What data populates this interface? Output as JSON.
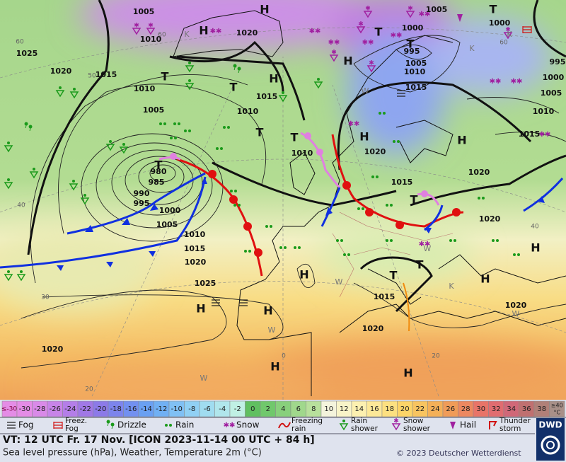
{
  "map": {
    "pressure_labels": [
      1005,
      1010,
      1020,
      1025,
      1020,
      1015,
      1010,
      1005,
      1015,
      1010,
      1000,
      995,
      1005,
      1010,
      1015,
      1005,
      1000,
      995,
      1000,
      1005,
      1010,
      1015,
      1020,
      1020,
      1010,
      1015,
      1020,
      980,
      985,
      990,
      995,
      1000,
      1005,
      1010,
      1015,
      1020,
      1025,
      1015,
      1020,
      1020,
      1020
    ],
    "pressure_centers": [
      "H",
      "H",
      "H",
      "T",
      "T",
      "T",
      "T",
      "H",
      "T",
      "T",
      "T",
      "H",
      "H",
      "T",
      "T",
      "H",
      "H",
      "H",
      "T",
      "T",
      "H",
      "H",
      "H",
      "H"
    ],
    "grid_labels": [
      60,
      50,
      40,
      30,
      20,
      0,
      20,
      40,
      60,
      60
    ],
    "air_mass_labels": [
      "K",
      "W",
      "K",
      "W",
      "W",
      "W",
      "W",
      "K",
      "W",
      "K"
    ]
  },
  "legend": {
    "temperature_scale": {
      "below_label": "≤-30",
      "above_label": "≥40",
      "unit": "°C",
      "items": [
        {
          "value": -30,
          "color": "#e48ce6"
        },
        {
          "value": -28,
          "color": "#d98ae8"
        },
        {
          "value": -26,
          "color": "#c784e8"
        },
        {
          "value": -24,
          "color": "#b47ee8"
        },
        {
          "value": -22,
          "color": "#a078e6"
        },
        {
          "value": -20,
          "color": "#8c7ae8"
        },
        {
          "value": -18,
          "color": "#7c84ec"
        },
        {
          "value": -16,
          "color": "#7290f0"
        },
        {
          "value": -14,
          "color": "#6aa0f2"
        },
        {
          "value": -12,
          "color": "#70b0f4"
        },
        {
          "value": -10,
          "color": "#80c0f4"
        },
        {
          "value": -8,
          "color": "#90d0f4"
        },
        {
          "value": -6,
          "color": "#a0dcf0"
        },
        {
          "value": -4,
          "color": "#b0e6ec"
        },
        {
          "value": -2,
          "color": "#c0f0e4"
        },
        {
          "value": 0,
          "color": "#60c060"
        },
        {
          "value": 2,
          "color": "#70c86c"
        },
        {
          "value": 4,
          "color": "#88d07c"
        },
        {
          "value": 6,
          "color": "#a0d88c"
        },
        {
          "value": 8,
          "color": "#b8e09c"
        },
        {
          "value": 10,
          "color": "#f4f4dc"
        },
        {
          "value": 12,
          "color": "#f8f4c8"
        },
        {
          "value": 14,
          "color": "#fcf0b0"
        },
        {
          "value": 16,
          "color": "#fce898"
        },
        {
          "value": 18,
          "color": "#fce080"
        },
        {
          "value": 20,
          "color": "#fcd468"
        },
        {
          "value": 22,
          "color": "#f8c460"
        },
        {
          "value": 24,
          "color": "#f4b058"
        },
        {
          "value": 26,
          "color": "#f09c58"
        },
        {
          "value": 28,
          "color": "#ec8860"
        },
        {
          "value": 30,
          "color": "#e87468"
        },
        {
          "value": 32,
          "color": "#e06c70"
        },
        {
          "value": 34,
          "color": "#d06878"
        },
        {
          "value": 36,
          "color": "#c07070"
        },
        {
          "value": 38,
          "color": "#b08078"
        }
      ]
    },
    "symbols": [
      {
        "type": "fog",
        "lines": [
          "Fog"
        ]
      },
      {
        "type": "freezfog",
        "lines": [
          "Freez.",
          "Fog"
        ]
      },
      {
        "type": "drizzle",
        "lines": [
          "Drizzle"
        ]
      },
      {
        "type": "rain",
        "lines": [
          "Rain"
        ]
      },
      {
        "type": "snow",
        "lines": [
          "Snow"
        ]
      },
      {
        "type": "freezingrain",
        "lines": [
          "Freezing",
          "rain"
        ]
      },
      {
        "type": "rainshower",
        "lines": [
          "Rain",
          "shower"
        ]
      },
      {
        "type": "snowshower",
        "lines": [
          "Snow",
          "shower"
        ]
      },
      {
        "type": "hail",
        "lines": [
          "Hail"
        ]
      },
      {
        "type": "thunder",
        "lines": [
          "Thunder",
          "storm"
        ]
      }
    ]
  },
  "info": {
    "valid_time": "VT: 12 UTC Fr.  17 Nov. [ICON 2023-11-14  00 UTC + 84 h]",
    "description": "Sea level pressure (hPa), Weather, Temperature 2m (°C)",
    "copyright": "© 2023 Deutscher Wetterdienst",
    "logo": "DWD"
  }
}
